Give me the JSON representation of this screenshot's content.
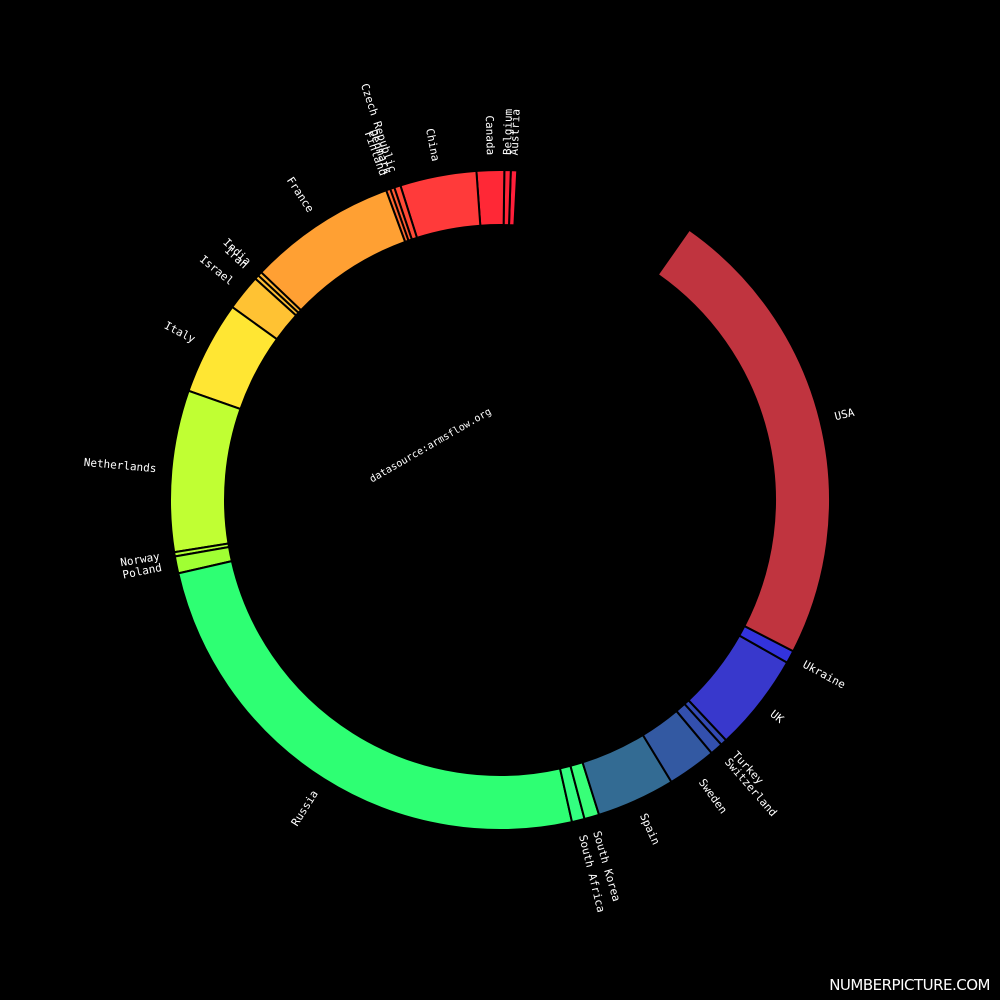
{
  "source_note": "datasource:armsflow.org",
  "brand": "NUMBERPICTURE.COM",
  "chart_data": {
    "type": "pie",
    "variant": "donut",
    "background": "#000000",
    "label_color": "#ffffff",
    "slices": [
      {
        "label": "Austria",
        "value": 0.3,
        "color": "#ff1f3a"
      },
      {
        "label": "Belgium",
        "value": 0.3,
        "color": "#ff2338"
      },
      {
        "label": "Canada",
        "value": 1.3,
        "color": "#ff2836"
      },
      {
        "label": "China",
        "value": 3.6,
        "color": "#ff3a3a"
      },
      {
        "label": "Czech Republic",
        "value": 0.3,
        "color": "#ff4a36"
      },
      {
        "label": "Denmark",
        "value": 0.2,
        "color": "#ff5a33"
      },
      {
        "label": "Finland",
        "value": 0.2,
        "color": "#ff6a30"
      },
      {
        "label": "France",
        "value": 7.0,
        "color": "#ffa033"
      },
      {
        "label": "India",
        "value": 0.2,
        "color": "#ffb533"
      },
      {
        "label": "Iran",
        "value": 0.2,
        "color": "#ffbe33"
      },
      {
        "label": "Israel",
        "value": 1.7,
        "color": "#ffc233"
      },
      {
        "label": "Italy",
        "value": 4.4,
        "color": "#ffe633"
      },
      {
        "label": "Netherlands",
        "value": 7.6,
        "color": "#c0ff33"
      },
      {
        "label": "Norway",
        "value": 0.2,
        "color": "#b0ff33"
      },
      {
        "label": "Poland",
        "value": 0.8,
        "color": "#a0ff33"
      },
      {
        "label": "Russia",
        "value": 24.0,
        "color": "#2eff73"
      },
      {
        "label": "South Africa",
        "value": 0.6,
        "color": "#33ff80"
      },
      {
        "label": "South Korea",
        "value": 0.7,
        "color": "#38ff78"
      },
      {
        "label": "Spain",
        "value": 3.7,
        "color": "#336b93"
      },
      {
        "label": "Sweden",
        "value": 2.3,
        "color": "#3359a2"
      },
      {
        "label": "Switzerland",
        "value": 0.6,
        "color": "#3350ae"
      },
      {
        "label": "Turkey",
        "value": 0.3,
        "color": "#334ab4"
      },
      {
        "label": "UK",
        "value": 4.6,
        "color": "#3838cc"
      },
      {
        "label": "Ukraine",
        "value": 0.6,
        "color": "#3333dd"
      },
      {
        "label": "USA",
        "value": 22.0,
        "color": "#c0343f"
      }
    ]
  }
}
